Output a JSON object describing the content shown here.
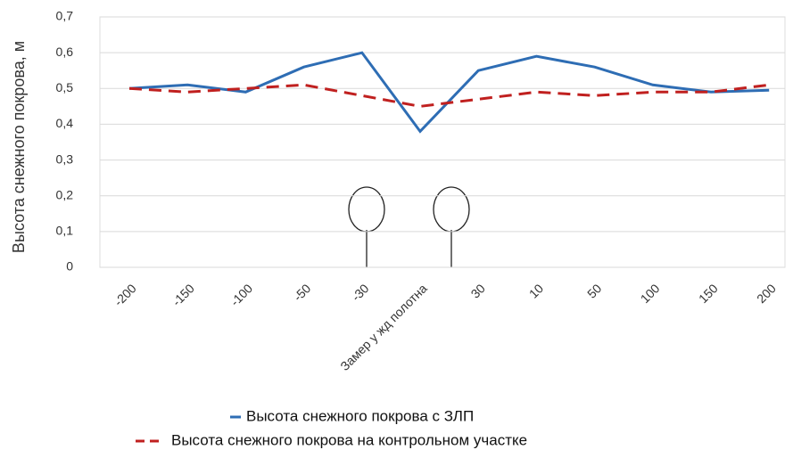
{
  "chart_data": {
    "type": "line",
    "y_label": "Высота снежного покрова, м",
    "categories": [
      "-200",
      "-150",
      "-100",
      "-50",
      "-30",
      "Замер у жд полотна",
      "30",
      "10",
      "50",
      "100",
      "150",
      "200"
    ],
    "series": [
      {
        "name": "Высота снежного покрова с ЗЛП",
        "color": "#2e6db4",
        "dash": false,
        "values": [
          0.5,
          0.51,
          0.49,
          0.56,
          0.6,
          0.38,
          0.55,
          0.59,
          0.56,
          0.51,
          0.49,
          0.495
        ]
      },
      {
        "name": "Высота снежного покрова на контрольном участке",
        "color": "#c0201f",
        "dash": true,
        "values": [
          0.5,
          0.49,
          0.5,
          0.51,
          0.48,
          0.45,
          0.47,
          0.49,
          0.48,
          0.49,
          0.49,
          0.51
        ]
      }
    ],
    "ylim": [
      0,
      0.7
    ],
    "yticks": [
      0,
      {
        "value": 0.1,
        "label": "0,1"
      },
      {
        "value": 0.2,
        "label": "0,2"
      },
      {
        "value": 0.3,
        "label": "0,3"
      },
      {
        "value": 0.4,
        "label": "0,4"
      },
      {
        "value": 0.5,
        "label": "0,5"
      },
      {
        "value": 0.6,
        "label": "0,6"
      },
      {
        "value": 0.7,
        "label": "0,7"
      }
    ],
    "grid": true
  }
}
